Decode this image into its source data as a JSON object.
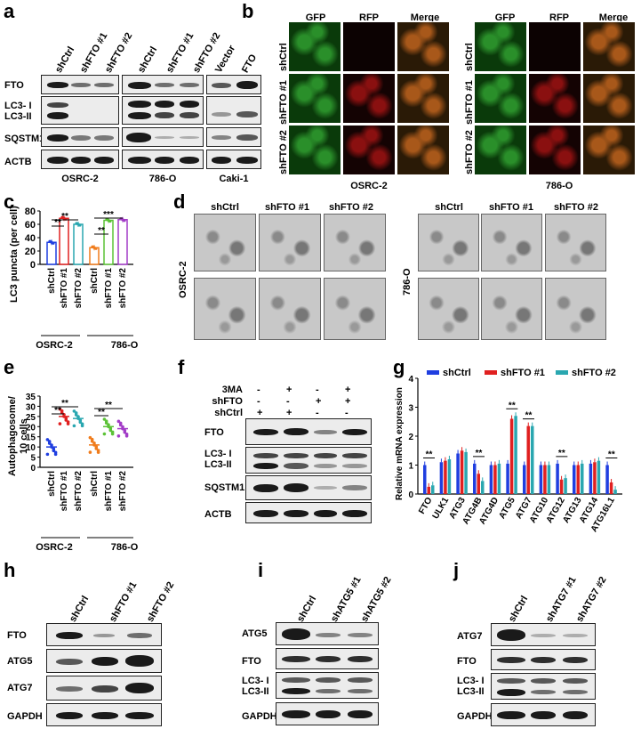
{
  "panels": {
    "a": "a",
    "b": "b",
    "c": "c",
    "d": "d",
    "e": "e",
    "f": "f",
    "g": "g",
    "h": "h",
    "i": "i",
    "j": "j"
  },
  "a": {
    "lanes": [
      "shCtrl",
      "shFTO #1",
      "shFTO #2",
      "shCtrl",
      "shFTO #1",
      "shFTO #2",
      "Vector",
      "FTO"
    ],
    "rows": [
      "FTO",
      "LC3- I",
      "LC3-II",
      "SQSTM1",
      "ACTB"
    ],
    "groups": [
      "OSRC-2",
      "786-O",
      "Caki-1"
    ]
  },
  "b": {
    "channels": [
      "GFP",
      "RFP",
      "Merge"
    ],
    "rows": [
      "shCtrl",
      "shFTO #1",
      "shFTO #2"
    ],
    "cells": [
      "OSRC-2",
      "786-O"
    ]
  },
  "c": {
    "ylabel": "LC3 puncta (per cell)",
    "ticks": [
      "0",
      "20",
      "40",
      "60",
      "80"
    ],
    "groups": [
      "OSRC-2",
      "786-O"
    ],
    "sig": [
      "**",
      "**",
      "**",
      "***"
    ]
  },
  "d": {
    "cols": [
      "shCtrl",
      "shFTO #1",
      "shFTO #2"
    ],
    "cells": [
      "OSRC-2",
      "786-O"
    ]
  },
  "e": {
    "ylabel": "Autophagosome/\n10 cells",
    "ylabel1": "Autophagosome/",
    "ylabel2": "10 cells",
    "ticks": [
      "0",
      "5",
      "10",
      "15",
      "20",
      "25",
      "30",
      "35"
    ],
    "groups": [
      "OSRC-2",
      "786-O"
    ],
    "sig": [
      "**",
      "**",
      "**",
      "**"
    ]
  },
  "f": {
    "conditions": [
      "3MA",
      "shFTO",
      "shCtrl"
    ],
    "signs": [
      [
        "-",
        "+",
        "-",
        "+"
      ],
      [
        "-",
        "-",
        "+",
        "+"
      ],
      [
        "+",
        "+",
        "-",
        "-"
      ]
    ],
    "rows": [
      "FTO",
      "LC3- I",
      "LC3-II",
      "SQSTM1",
      "ACTB"
    ]
  },
  "g": {
    "ylabel": "Relative mRNA expression",
    "ticks": [
      "0",
      "1",
      "2",
      "3",
      "4"
    ],
    "sig": "**"
  },
  "h": {
    "lanes": [
      "shCtrl",
      "shFTO #1",
      "shFTO #2"
    ],
    "rows": [
      "FTO",
      "ATG5",
      "ATG7",
      "GAPDH"
    ]
  },
  "i": {
    "lanes": [
      "shCtrl",
      "shATG5 #1",
      "shATG5 #2"
    ],
    "rows": [
      "ATG5",
      "FTO",
      "LC3- I",
      "LC3-II",
      "GAPDH"
    ]
  },
  "j": {
    "lanes": [
      "shCtrl",
      "shATG7 #1",
      "shATG7 #2"
    ],
    "rows": [
      "ATG7",
      "FTO",
      "LC3- I",
      "LC3-II",
      "GAPDH"
    ]
  },
  "colors": {
    "blue": "#1f3ee0",
    "red": "#e02020",
    "teal": "#2aa7b0",
    "green": "#5bc236",
    "purple": "#a23cc7",
    "orange": "#f07c1c"
  },
  "chart_data": [
    {
      "panel": "c",
      "type": "bar",
      "categories": [
        "shCtrl",
        "shFTO #1",
        "shFTO #2",
        "shCtrl",
        "shFTO #1",
        "shFTO #2"
      ],
      "groups": [
        "OSRC-2",
        "OSRC-2",
        "OSRC-2",
        "786-O",
        "786-O",
        "786-O"
      ],
      "values": [
        33,
        69,
        60,
        25,
        66,
        67
      ],
      "ylabel": "LC3 puncta (per cell)",
      "ylim": [
        0,
        80
      ]
    },
    {
      "panel": "e",
      "type": "bar",
      "categories": [
        "shCtrl",
        "shFTO #1",
        "shFTO #2",
        "shCtrl",
        "shFTO #1",
        "shFTO #2"
      ],
      "groups": [
        "OSRC-2",
        "OSRC-2",
        "OSRC-2",
        "786-O",
        "786-O",
        "786-O"
      ],
      "values": [
        10,
        25,
        24,
        11,
        20,
        19
      ],
      "ylabel": "Autophagosome/ 10 cells",
      "ylim": [
        0,
        35
      ]
    },
    {
      "panel": "g",
      "type": "bar",
      "categories": [
        "FTO",
        "ULK1",
        "ATG3",
        "ATG4B",
        "ATG4D",
        "ATG5",
        "ATG7",
        "ATG10",
        "ATG12",
        "ATG13",
        "ATG14",
        "ATG16L1"
      ],
      "series": [
        {
          "name": "shCtrl",
          "values": [
            1.0,
            1.1,
            1.4,
            1.05,
            1.0,
            1.05,
            1.0,
            1.0,
            1.05,
            1.0,
            1.05,
            1.0
          ]
        },
        {
          "name": "shFTO #1",
          "values": [
            0.25,
            1.15,
            1.5,
            0.7,
            1.0,
            2.6,
            2.35,
            1.0,
            0.5,
            1.0,
            1.1,
            0.4
          ]
        },
        {
          "name": "shFTO #2",
          "values": [
            0.3,
            1.2,
            1.45,
            0.45,
            1.05,
            2.7,
            2.35,
            1.0,
            0.55,
            1.05,
            1.15,
            0.15
          ]
        }
      ],
      "ylabel": "Relative mRNA expression",
      "ylim": [
        0,
        4
      ]
    }
  ]
}
